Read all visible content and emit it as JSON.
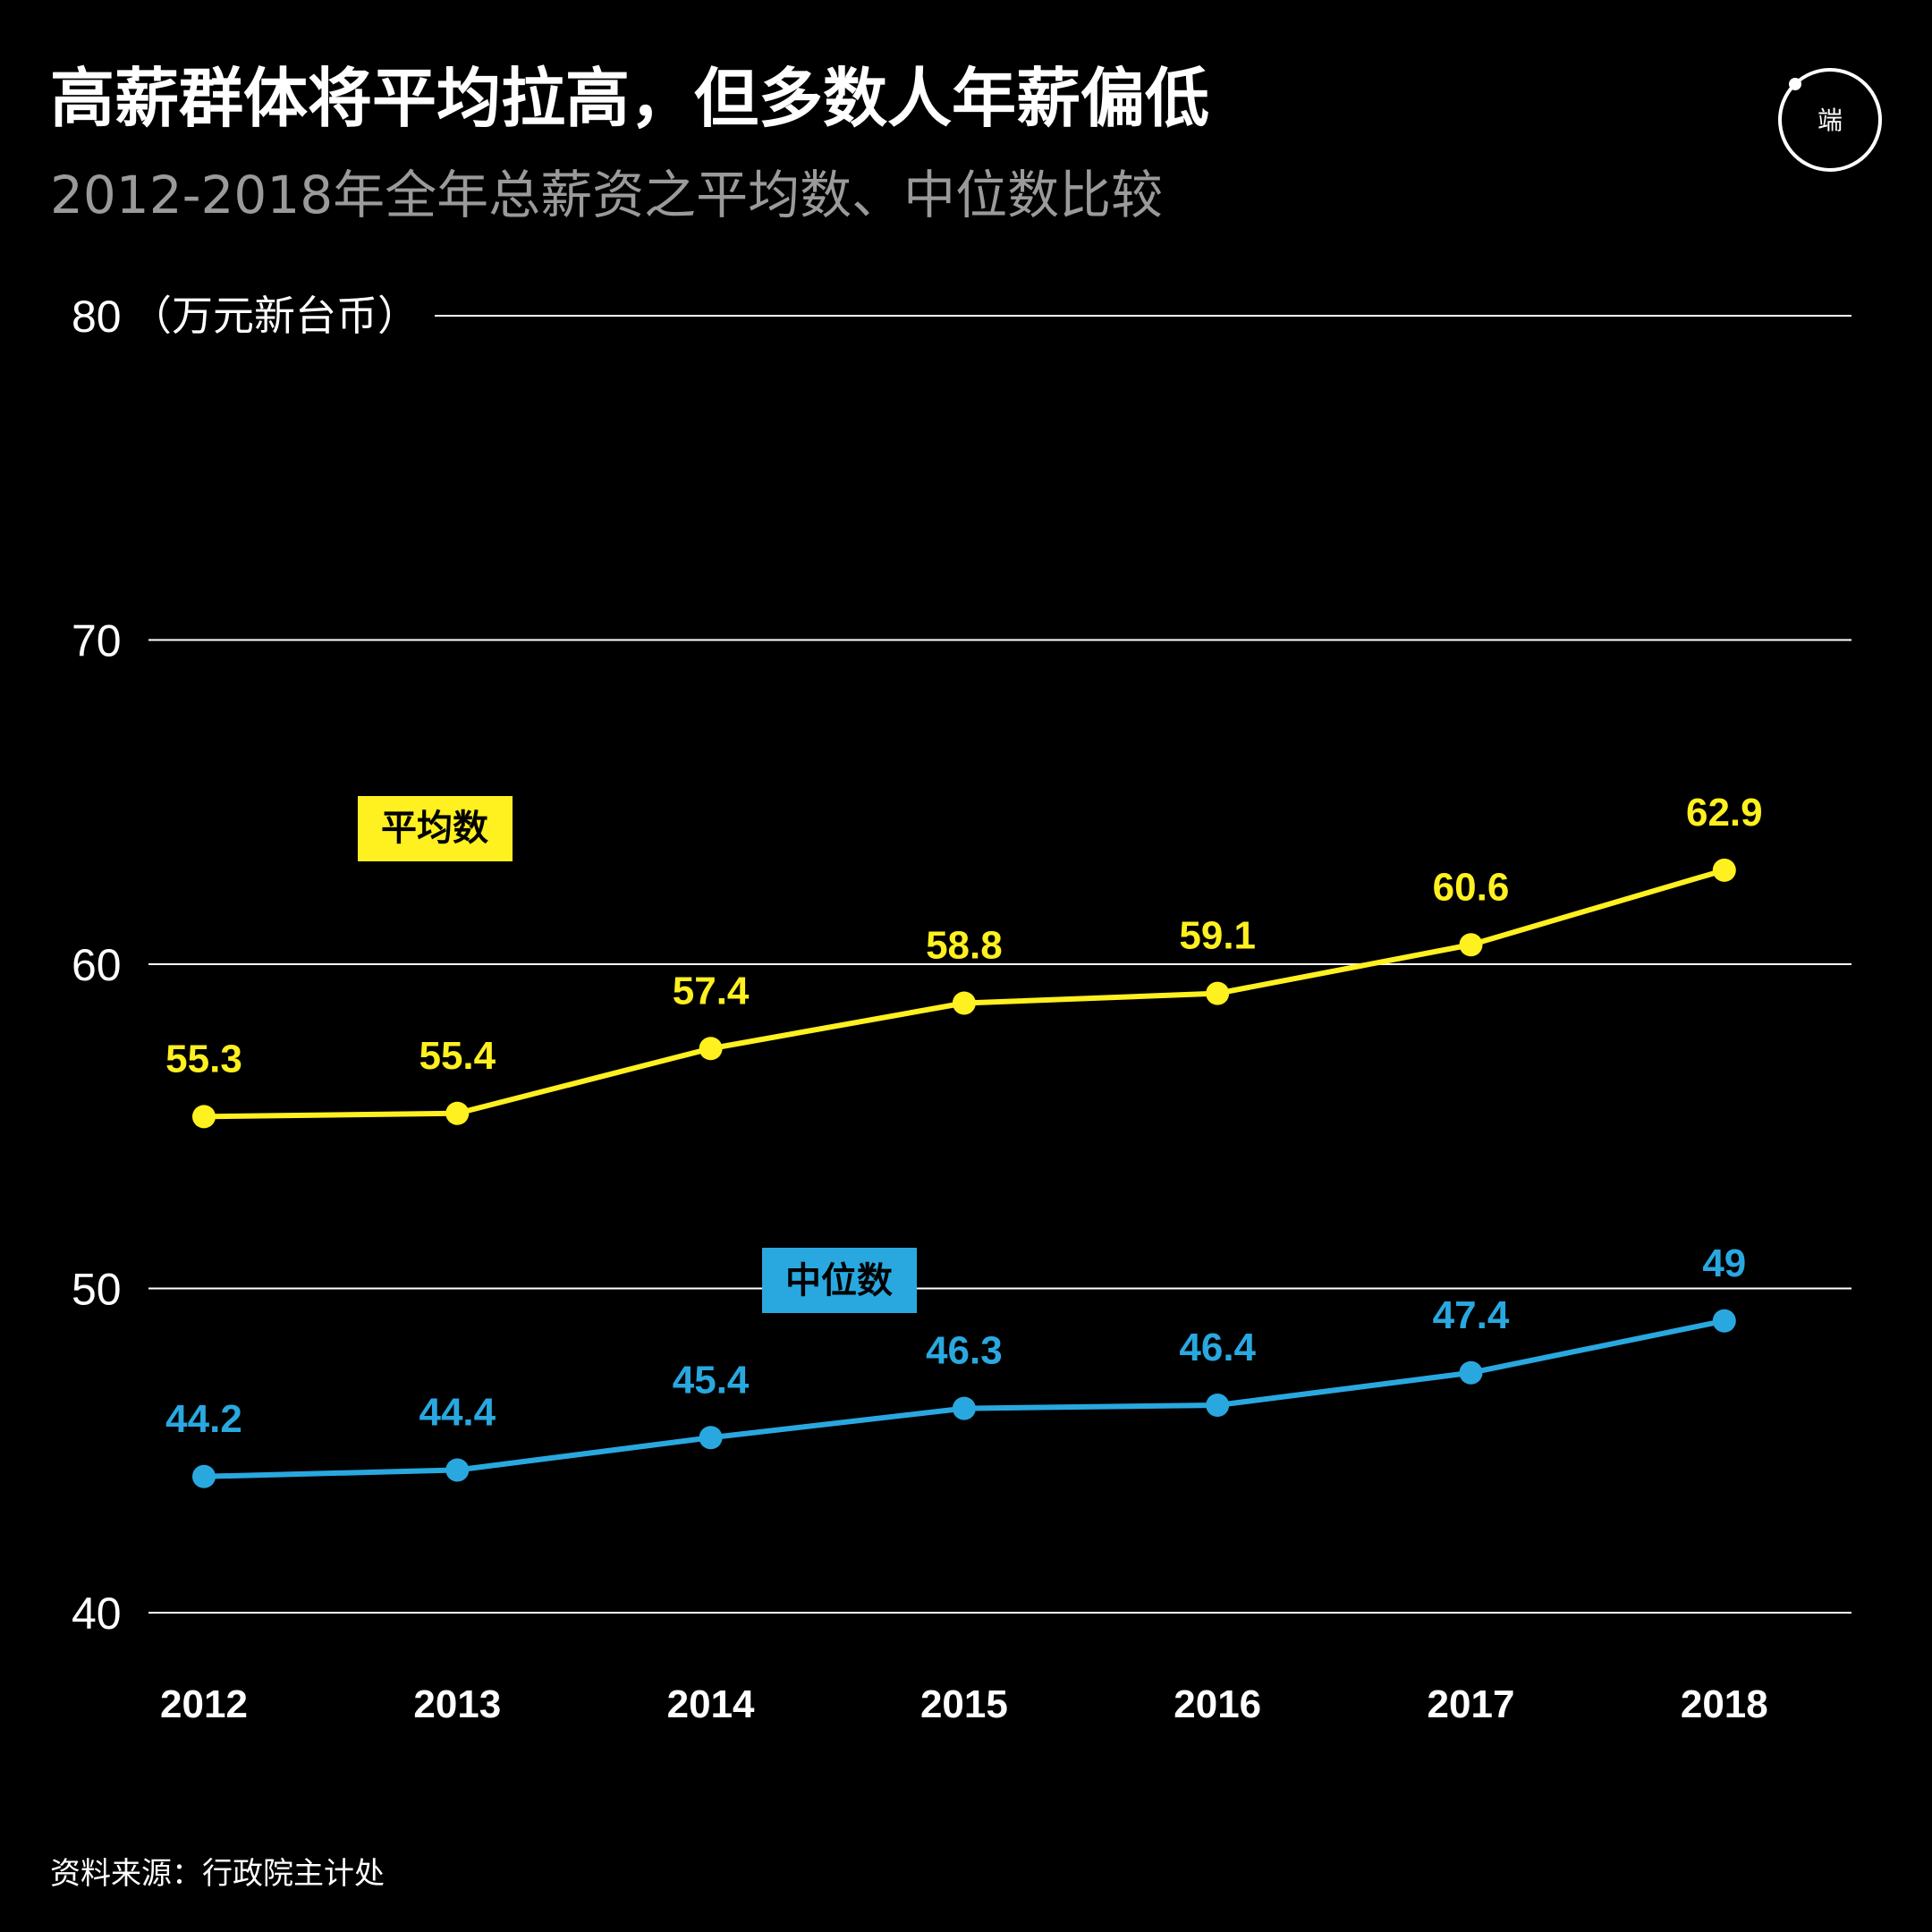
{
  "header": {
    "title": "高薪群体将平均拉高，但多数人年薪偏低",
    "subtitle": "2012-2018年全年总薪资之平均数、中位数比较"
  },
  "logo": {
    "text": "端"
  },
  "source": "资料来源：行政院主计处",
  "colors": {
    "background": "#000000",
    "mean": "#fff01f",
    "median": "#29a8e0",
    "grid": "#ffffff"
  },
  "chart_data": {
    "type": "line",
    "x": [
      "2012",
      "2013",
      "2014",
      "2015",
      "2016",
      "2017",
      "2018"
    ],
    "y_unit": "（万元新台币）",
    "ylim": [
      40,
      80
    ],
    "yticks": [
      "40",
      "50",
      "60",
      "70",
      "80"
    ],
    "grid": true,
    "series": [
      {
        "name": "平均数",
        "values": [
          55.3,
          55.4,
          57.4,
          58.8,
          59.1,
          60.6,
          62.9
        ],
        "labels": [
          "55.3",
          "55.4",
          "57.4",
          "58.8",
          "59.1",
          "60.6",
          "62.9"
        ]
      },
      {
        "name": "中位数",
        "values": [
          44.2,
          44.4,
          45.4,
          46.3,
          46.4,
          47.4,
          49
        ],
        "labels": [
          "44.2",
          "44.4",
          "45.4",
          "46.3",
          "46.4",
          "47.4",
          "49"
        ]
      }
    ]
  }
}
